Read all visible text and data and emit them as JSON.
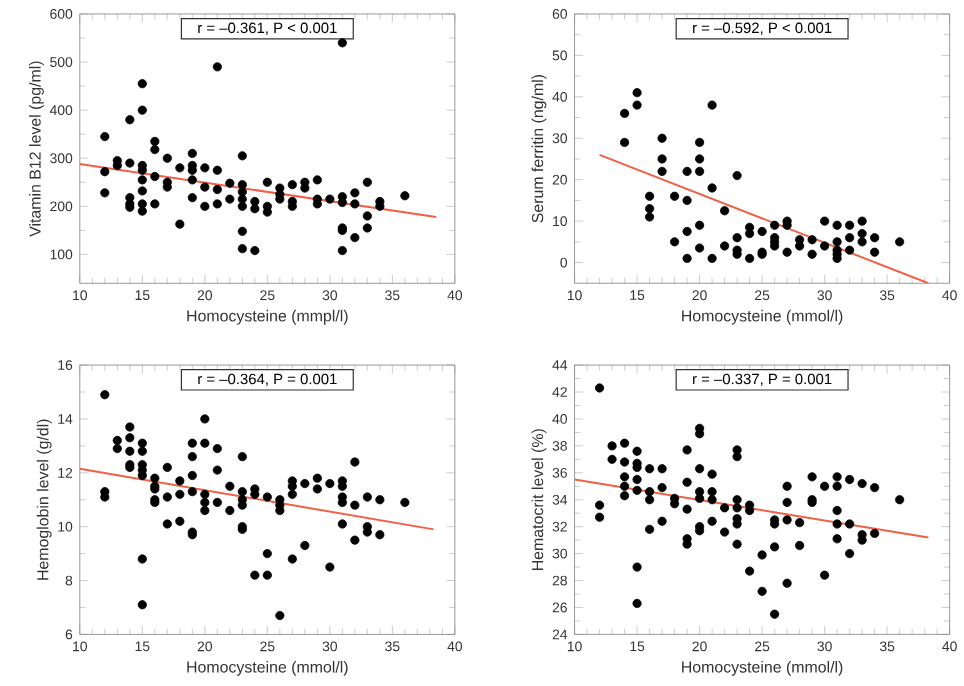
{
  "chart_data": [
    {
      "type": "scatter",
      "xlabel": "Homocysteine (mmpl/l)",
      "ylabel": "Vitamin B12 level (pg/ml)",
      "annotations": [
        "r = –0.361, P < 0.001"
      ],
      "xlim": [
        10,
        40
      ],
      "ylim": [
        40,
        600
      ],
      "xticks": [
        10,
        15,
        20,
        25,
        30,
        35,
        40
      ],
      "yticks": [
        100,
        200,
        300,
        400,
        500,
        600
      ],
      "series": [
        {
          "color": "#000000",
          "marker": "circle",
          "x": [
            12,
            12,
            12,
            13,
            13,
            14,
            14,
            14,
            14,
            14,
            15,
            15,
            15,
            15,
            15,
            15,
            15,
            15,
            16,
            16,
            16,
            16,
            17,
            17,
            17,
            18,
            18,
            19,
            19,
            19,
            19,
            19,
            20,
            20,
            20,
            21,
            21,
            21,
            21,
            22,
            22,
            23,
            23,
            23,
            23,
            23,
            23,
            23,
            24,
            24,
            24,
            25,
            25,
            25,
            26,
            26,
            26,
            27,
            27,
            27,
            28,
            28,
            29,
            29,
            29,
            30,
            31,
            31,
            31,
            31,
            31,
            31,
            32,
            32,
            32,
            33,
            33,
            33,
            34,
            34,
            36
          ],
          "values": [
            345,
            272,
            228,
            295,
            285,
            380,
            290,
            218,
            205,
            198,
            455,
            400,
            285,
            275,
            255,
            232,
            205,
            190,
            335,
            318,
            262,
            205,
            300,
            250,
            240,
            280,
            163,
            310,
            285,
            275,
            255,
            218,
            280,
            240,
            200,
            490,
            275,
            235,
            205,
            248,
            215,
            305,
            245,
            230,
            215,
            200,
            148,
            112,
            108,
            210,
            195,
            250,
            200,
            188,
            238,
            225,
            215,
            245,
            210,
            200,
            250,
            238,
            255,
            215,
            205,
            215,
            540,
            220,
            208,
            155,
            150,
            108,
            228,
            205,
            135,
            250,
            180,
            155,
            210,
            200,
            222
          ]
        },
        {
          "type": "line",
          "color": "#f06048",
          "x": [
            10,
            38.5
          ],
          "values": [
            288,
            178
          ]
        }
      ]
    },
    {
      "type": "scatter",
      "xlabel": "Homocysteine (mmol/l)",
      "ylabel": "Serum ferritin (ng/ml)",
      "annotations": [
        "r = –0.592, P < 0.001"
      ],
      "xlim": [
        10,
        40
      ],
      "ylim": [
        -5,
        60
      ],
      "xticks": [
        10,
        15,
        20,
        25,
        30,
        35,
        40
      ],
      "yticks": [
        0,
        10,
        20,
        30,
        40,
        50,
        60
      ],
      "series": [
        {
          "color": "#000000",
          "marker": "circle",
          "x": [
            14,
            14,
            15,
            15,
            16,
            16,
            16,
            17,
            17,
            17,
            18,
            18,
            19,
            19,
            19,
            19,
            20,
            20,
            20,
            20,
            20,
            21,
            21,
            21,
            22,
            22,
            23,
            23,
            23,
            23,
            24,
            24,
            24,
            25,
            25,
            25,
            26,
            26,
            26,
            26,
            27,
            27,
            27,
            28,
            28,
            29,
            29,
            30,
            30,
            31,
            31,
            31,
            31,
            31,
            32,
            32,
            32,
            33,
            33,
            33,
            34,
            34,
            36
          ],
          "values": [
            36,
            29,
            41,
            38,
            16,
            13,
            11,
            30,
            25,
            22,
            16,
            5,
            22,
            15,
            7.5,
            1,
            29,
            25,
            22,
            9,
            3.5,
            38,
            18,
            1,
            12.5,
            4,
            21,
            6,
            3,
            2,
            8.5,
            7,
            1,
            7.5,
            2.5,
            2,
            9,
            6,
            5,
            4,
            10,
            9,
            2.5,
            5.5,
            4,
            5.5,
            2,
            10,
            4,
            9,
            5,
            3,
            2,
            1,
            9,
            6,
            3,
            10,
            7,
            5,
            6,
            2.5,
            5
          ]
        },
        {
          "type": "line",
          "color": "#f06048",
          "x": [
            12,
            38.3
          ],
          "values": [
            26,
            -5
          ]
        }
      ]
    },
    {
      "type": "scatter",
      "xlabel": "Homocysteine (mmol/l)",
      "ylabel": "Hemoglobin level (g/dl)",
      "annotations": [
        "r = –0.364, P = 0.001"
      ],
      "xlim": [
        10,
        40
      ],
      "ylim": [
        6,
        16
      ],
      "xticks": [
        10,
        15,
        20,
        25,
        30,
        35,
        40
      ],
      "yticks": [
        6,
        8,
        10,
        12,
        14,
        16
      ],
      "series": [
        {
          "color": "#000000",
          "marker": "circle",
          "x": [
            12,
            12,
            12,
            13,
            13,
            14,
            14,
            14,
            14,
            14,
            15,
            15,
            15,
            15,
            15,
            15,
            15,
            16,
            16,
            16,
            16,
            16,
            17,
            17,
            17,
            18,
            18,
            18,
            19,
            19,
            19,
            19,
            19,
            19,
            20,
            20,
            20,
            20,
            20,
            21,
            21,
            21,
            22,
            22,
            23,
            23,
            23,
            23,
            23,
            23,
            24,
            24,
            24,
            25,
            25,
            25,
            26,
            26,
            26,
            26,
            27,
            27,
            27,
            27,
            28,
            28,
            29,
            29,
            30,
            30,
            31,
            31,
            31,
            31,
            31,
            32,
            32,
            32,
            33,
            33,
            33,
            34,
            34,
            36
          ],
          "values": [
            14.9,
            11.3,
            11.1,
            13.2,
            12.9,
            13.7,
            13.3,
            12.8,
            12.3,
            12.2,
            13.1,
            12.8,
            12.3,
            12.1,
            11.9,
            8.8,
            7.1,
            11.8,
            11.5,
            11.4,
            11.0,
            10.9,
            12.2,
            11.1,
            10.1,
            11.7,
            11.2,
            10.2,
            13.1,
            12.6,
            11.9,
            11.3,
            9.8,
            9.7,
            14.0,
            13.1,
            11.2,
            10.9,
            10.6,
            12.9,
            12.1,
            10.9,
            11.5,
            10.6,
            12.6,
            11.3,
            11.0,
            10.8,
            10.0,
            9.9,
            11.4,
            11.2,
            8.2,
            11.1,
            9.0,
            8.2,
            11.0,
            10.8,
            10.6,
            6.7,
            11.7,
            11.5,
            11.2,
            8.8,
            11.6,
            9.3,
            11.8,
            11.4,
            11.6,
            8.5,
            11.7,
            11.5,
            11.1,
            10.9,
            10.1,
            12.4,
            10.8,
            9.5,
            11.1,
            10.0,
            9.8,
            11.0,
            9.7,
            10.9
          ]
        },
        {
          "type": "line",
          "color": "#f06048",
          "x": [
            10,
            38.3
          ],
          "values": [
            12.15,
            9.9
          ]
        }
      ]
    },
    {
      "type": "scatter",
      "xlabel": "Homocysteine (mmol/l)",
      "ylabel": "Hematocrit level (%)",
      "annotations": [
        "r = –0.337, P = 0.001"
      ],
      "xlim": [
        10,
        40
      ],
      "ylim": [
        24,
        44
      ],
      "xticks": [
        10,
        15,
        20,
        25,
        30,
        35,
        40
      ],
      "yticks": [
        24,
        26,
        28,
        30,
        32,
        34,
        36,
        38,
        40,
        42,
        44
      ],
      "series": [
        {
          "color": "#000000",
          "marker": "circle",
          "x": [
            12,
            12,
            12,
            13,
            13,
            14,
            14,
            14,
            14,
            14,
            15,
            15,
            15,
            15,
            15,
            15,
            15,
            16,
            16,
            16,
            16,
            17,
            17,
            17,
            18,
            18,
            19,
            19,
            19,
            19,
            19,
            20,
            20,
            20,
            20,
            20,
            20,
            20,
            21,
            21,
            21,
            21,
            22,
            22,
            23,
            23,
            23,
            23,
            23,
            23,
            23,
            24,
            24,
            24,
            25,
            25,
            26,
            26,
            26,
            26,
            27,
            27,
            27,
            27,
            28,
            28,
            29,
            29,
            29,
            30,
            30,
            31,
            31,
            31,
            31,
            31,
            32,
            32,
            32,
            33,
            33,
            33,
            34,
            34,
            36
          ],
          "values": [
            42.3,
            33.6,
            32.7,
            38.0,
            37.0,
            38.2,
            36.8,
            35.7,
            35.0,
            34.3,
            37.6,
            36.7,
            36.4,
            35.5,
            34.7,
            29.0,
            26.3,
            36.3,
            34.6,
            34.0,
            31.8,
            36.3,
            34.9,
            32.4,
            34.1,
            33.7,
            37.7,
            35.3,
            33.3,
            31.1,
            30.7,
            39.3,
            38.9,
            36.3,
            34.6,
            34.1,
            32.0,
            31.7,
            35.9,
            34.6,
            34.0,
            32.4,
            33.4,
            31.6,
            37.7,
            37.2,
            34.0,
            33.4,
            32.6,
            32.2,
            30.7,
            33.6,
            33.2,
            28.7,
            29.9,
            27.2,
            32.5,
            32.2,
            30.5,
            25.5,
            35.0,
            33.8,
            32.5,
            27.8,
            32.3,
            30.6,
            35.7,
            34.0,
            33.8,
            35.0,
            28.4,
            35.7,
            35.0,
            33.2,
            32.2,
            31.1,
            35.5,
            32.2,
            30.0,
            35.2,
            31.4,
            31.0,
            34.9,
            31.5,
            34.0
          ]
        },
        {
          "type": "line",
          "color": "#f06048",
          "x": [
            10,
            38.3
          ],
          "values": [
            35.5,
            31.2
          ]
        }
      ]
    }
  ]
}
